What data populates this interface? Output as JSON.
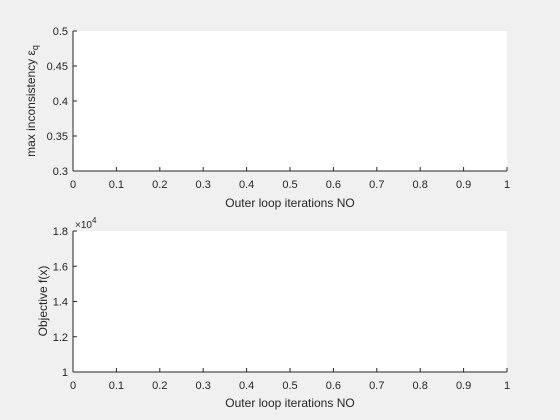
{
  "chart_data": [
    {
      "type": "line",
      "xlabel": "Outer loop iterations NO",
      "ylabel": "max inconsistency ε",
      "ylabel_subscript": "q",
      "xlim": [
        0,
        1
      ],
      "ylim": [
        0.3,
        0.5
      ],
      "xticks": [
        "0",
        "0.1",
        "0.2",
        "0.3",
        "0.4",
        "0.5",
        "0.6",
        "0.7",
        "0.8",
        "0.9",
        "1"
      ],
      "yticks": [
        "0.3",
        "0.35",
        "0.4",
        "0.45",
        "0.5"
      ],
      "series": [],
      "grid": false
    },
    {
      "type": "line",
      "xlabel": "Outer loop iterations NO",
      "ylabel": "Objective f(x)",
      "xlim": [
        0,
        1
      ],
      "ylim": [
        10000,
        18000
      ],
      "y_exponent_base": "×10",
      "y_exponent_power": "4",
      "xticks": [
        "0",
        "0.1",
        "0.2",
        "0.3",
        "0.4",
        "0.5",
        "0.6",
        "0.7",
        "0.8",
        "0.9",
        "1"
      ],
      "yticks": [
        "1",
        "1.2",
        "1.4",
        "1.6",
        "1.8"
      ],
      "series": [],
      "grid": false
    }
  ]
}
